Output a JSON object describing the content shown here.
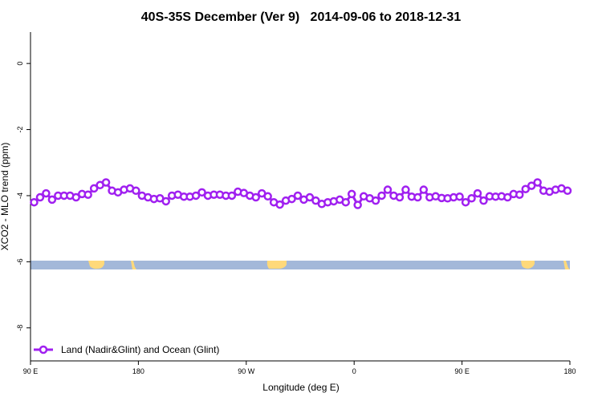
{
  "chart_data": {
    "type": "line",
    "title": "40S-35S December (Ver 9)   2014-09-06 to 2018-12-31",
    "x_label": "Longitude (deg E)",
    "y_label": "XCO2 - MLO trend (ppm)",
    "xlim": [
      90,
      540
    ],
    "ylim": [
      -9,
      0.95
    ],
    "xticks": [
      {
        "value": 90,
        "label": "90 E"
      },
      {
        "value": 180,
        "label": "180"
      },
      {
        "value": 270,
        "label": "90 W"
      },
      {
        "value": 360,
        "label": "0"
      },
      {
        "value": 450,
        "label": "90 E"
      },
      {
        "value": 540,
        "label": "180"
      }
    ],
    "yticks": [
      0,
      -2,
      -4,
      -6,
      -8
    ],
    "legend": "bottom-left",
    "series": [
      {
        "name": "Land (Nadir&Glint) and Ocean (Glint)",
        "color": "#a020f0",
        "x": [
          93,
          98,
          103,
          108,
          113,
          118,
          123,
          128,
          133,
          138,
          143,
          148,
          153,
          158,
          163,
          168,
          173,
          178,
          183,
          188,
          193,
          198,
          203,
          208,
          213,
          218,
          223,
          228,
          233,
          238,
          243,
          248,
          253,
          258,
          263,
          268,
          273,
          278,
          283,
          288,
          293,
          298,
          303,
          308,
          313,
          318,
          323,
          328,
          333,
          338,
          343,
          348,
          353,
          358,
          363,
          368,
          373,
          378,
          383,
          388,
          393,
          398,
          403,
          408,
          413,
          418,
          423,
          428,
          433,
          438,
          443,
          448,
          453,
          458,
          463,
          468,
          473,
          478,
          483,
          488,
          493,
          498,
          503,
          508,
          513,
          518,
          523,
          528,
          533,
          538
        ],
        "values": [
          -4.2,
          -4.05,
          -3.93,
          -4.12,
          -4.0,
          -4.0,
          -4.0,
          -4.05,
          -3.95,
          -3.97,
          -3.78,
          -3.68,
          -3.6,
          -3.85,
          -3.9,
          -3.82,
          -3.78,
          -3.85,
          -4.0,
          -4.05,
          -4.1,
          -4.08,
          -4.17,
          -4.0,
          -3.97,
          -4.03,
          -4.03,
          -4.0,
          -3.9,
          -4.0,
          -3.97,
          -3.97,
          -4.0,
          -4.0,
          -3.88,
          -3.92,
          -4.0,
          -4.05,
          -3.93,
          -4.02,
          -4.2,
          -4.27,
          -4.15,
          -4.1,
          -4.0,
          -4.12,
          -4.05,
          -4.15,
          -4.25,
          -4.2,
          -4.17,
          -4.12,
          -4.2,
          -3.95,
          -4.28,
          -4.02,
          -4.08,
          -4.15,
          -4.0,
          -3.82,
          -4.0,
          -4.05,
          -3.82,
          -4.03,
          -4.05,
          -3.82,
          -4.05,
          -4.02,
          -4.07,
          -4.08,
          -4.05,
          -4.03,
          -4.2,
          -4.08,
          -3.93,
          -4.15,
          -4.02,
          -4.03,
          -4.02,
          -4.05,
          -3.95,
          -3.97,
          -3.8,
          -3.7,
          -3.6,
          -3.85,
          -3.88,
          -3.82,
          -3.78,
          -3.85
        ]
      }
    ]
  }
}
